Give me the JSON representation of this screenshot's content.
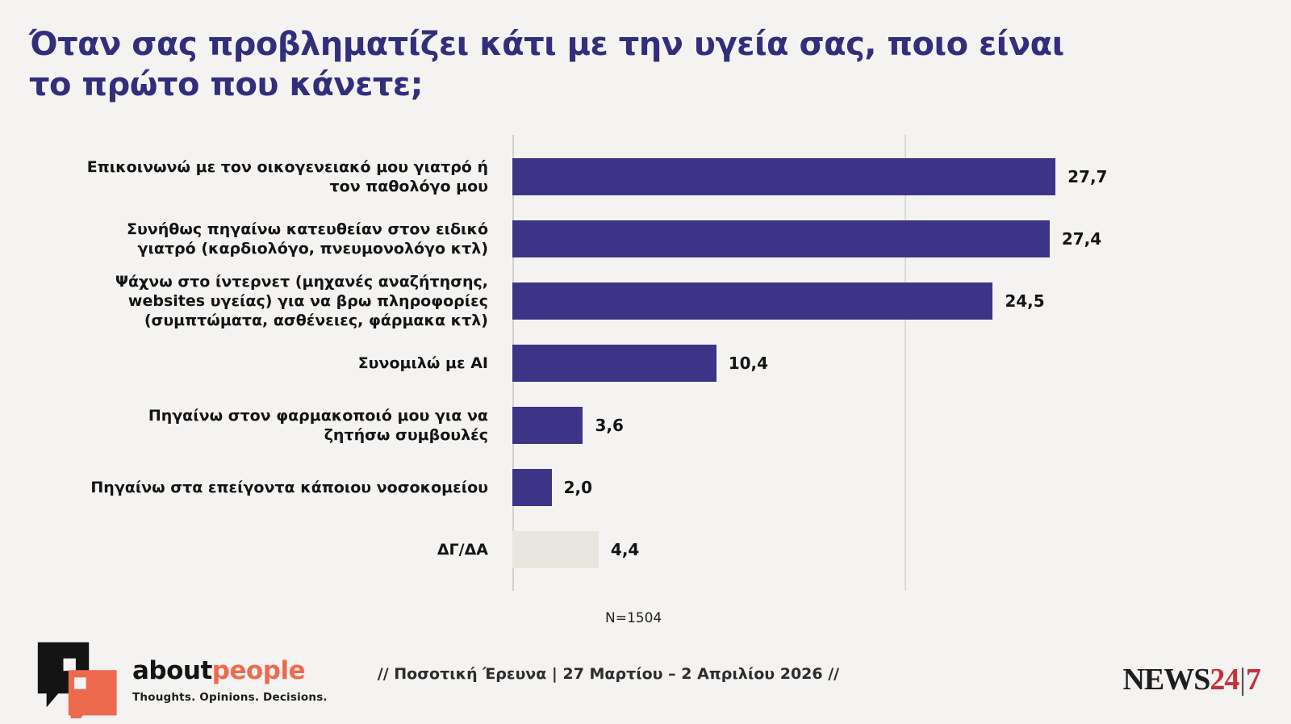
{
  "title": {
    "line1": "Όταν σας προβληματίζει κάτι με την υγεία σας, ποιο είναι",
    "line2": "το πρώτο που κάνετε;"
  },
  "chart_data": {
    "type": "bar",
    "orientation": "horizontal",
    "title": "Όταν σας προβληματίζει κάτι με την υγεία σας, ποιο είναι το πρώτο που κάνετε;",
    "categories": [
      "Επικοινωνώ με τον οικογενειακό μου γιατρό ή τον παθολόγο μου",
      "Συνήθως πηγαίνω κατευθείαν στον ειδικό γιατρό (καρδιολόγο, πνευμονολόγο κτλ)",
      "Ψάχνω στο ίντερνετ (μηχανές αναζήτησης, websites υγείας) για να βρω πληροφορίες (συμπτώματα, ασθένειες, φάρμακα κτλ)",
      "Συνομιλώ με AI",
      "Πηγαίνω στον φαρμακοποιό μου για να ζητήσω συμβουλές",
      "Πηγαίνω στα επείγοντα κάποιου νοσοκομείου",
      "ΔΓ/ΔΑ"
    ],
    "values": [
      27.7,
      27.4,
      24.5,
      10.4,
      3.6,
      2.0,
      4.4
    ],
    "value_labels": [
      "27,7",
      "27,4",
      "24,5",
      "10,4",
      "3,6",
      "2,0",
      "4,4"
    ],
    "bar_color": "#3d3488",
    "dk_na_category": "ΔΓ/ΔΑ",
    "dk_na_bar_color": "#e9e6e0",
    "xlim": [
      0,
      30
    ],
    "gridline_value": 20,
    "grid": "single vertical gridline",
    "legend": "none",
    "sample_note": "N=1504"
  },
  "footer": {
    "brand_about": "about",
    "brand_people": "people",
    "brand_tagline": "Thoughts. Opinions. Decisions.",
    "survey_info": "// Ποσοτική Έρευνα | 27 Μαρτίου – 2 Απριλίου 2026 //",
    "news_name": "NEWS",
    "news_24": "24",
    "news_divider": "|",
    "news_7": "7"
  },
  "colors": {
    "background": "#f4f3f1",
    "title_indigo": "#332e7b",
    "bar_indigo": "#3d3488",
    "dk_na_gray": "#e9e6e0",
    "accent_orange": "#ee6a4f",
    "news_red": "#c4323b"
  }
}
